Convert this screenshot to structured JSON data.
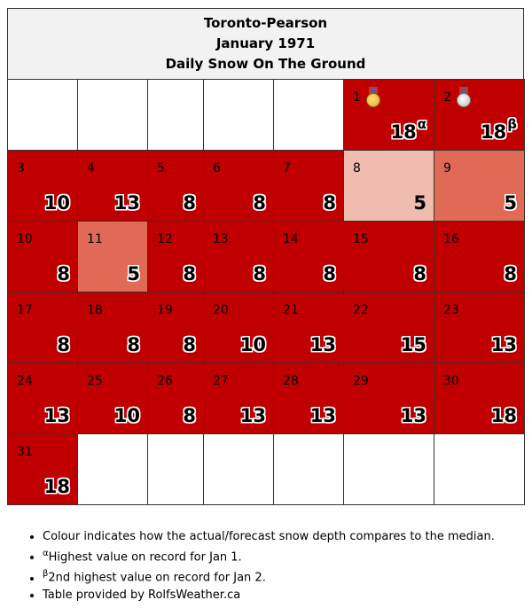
{
  "header": {
    "station": "Toronto-Pearson",
    "month": "January 1971",
    "metric": "Daily Snow On The Ground"
  },
  "colors": {
    "dark_red": "#c00000",
    "pale_pink": "#f0bcb0",
    "salmon": "#e06a55",
    "empty": "#ffffff"
  },
  "weeks": [
    [
      {
        "day": "",
        "value": "",
        "color": "empty"
      },
      {
        "day": "",
        "value": "",
        "color": "empty"
      },
      {
        "day": "",
        "value": "",
        "color": "empty"
      },
      {
        "day": "",
        "value": "",
        "color": "empty"
      },
      {
        "day": "",
        "value": "",
        "color": "empty"
      },
      {
        "day": "1",
        "value": "18",
        "sup": "α",
        "color": "dark_red",
        "medal": "gold-medal-icon"
      },
      {
        "day": "2",
        "value": "18",
        "sup": "β",
        "color": "dark_red",
        "medal": "silver-medal-icon"
      }
    ],
    [
      {
        "day": "3",
        "value": "10",
        "color": "dark_red"
      },
      {
        "day": "4",
        "value": "13",
        "color": "dark_red"
      },
      {
        "day": "5",
        "value": "8",
        "color": "dark_red"
      },
      {
        "day": "6",
        "value": "8",
        "color": "dark_red"
      },
      {
        "day": "7",
        "value": "8",
        "color": "dark_red"
      },
      {
        "day": "8",
        "value": "5",
        "color": "pale_pink"
      },
      {
        "day": "9",
        "value": "5",
        "color": "salmon"
      }
    ],
    [
      {
        "day": "10",
        "value": "8",
        "color": "dark_red"
      },
      {
        "day": "11",
        "value": "5",
        "color": "salmon"
      },
      {
        "day": "12",
        "value": "8",
        "color": "dark_red"
      },
      {
        "day": "13",
        "value": "8",
        "color": "dark_red"
      },
      {
        "day": "14",
        "value": "8",
        "color": "dark_red"
      },
      {
        "day": "15",
        "value": "8",
        "color": "dark_red"
      },
      {
        "day": "16",
        "value": "8",
        "color": "dark_red"
      }
    ],
    [
      {
        "day": "17",
        "value": "8",
        "color": "dark_red"
      },
      {
        "day": "18",
        "value": "8",
        "color": "dark_red"
      },
      {
        "day": "19",
        "value": "8",
        "color": "dark_red"
      },
      {
        "day": "20",
        "value": "10",
        "color": "dark_red"
      },
      {
        "day": "21",
        "value": "13",
        "color": "dark_red"
      },
      {
        "day": "22",
        "value": "15",
        "color": "dark_red"
      },
      {
        "day": "23",
        "value": "13",
        "color": "dark_red"
      }
    ],
    [
      {
        "day": "24",
        "value": "13",
        "color": "dark_red"
      },
      {
        "day": "25",
        "value": "10",
        "color": "dark_red"
      },
      {
        "day": "26",
        "value": "8",
        "color": "dark_red"
      },
      {
        "day": "27",
        "value": "13",
        "color": "dark_red"
      },
      {
        "day": "28",
        "value": "13",
        "color": "dark_red"
      },
      {
        "day": "29",
        "value": "13",
        "color": "dark_red"
      },
      {
        "day": "30",
        "value": "18",
        "color": "dark_red"
      }
    ],
    [
      {
        "day": "31",
        "value": "18",
        "color": "dark_red"
      },
      {
        "day": "",
        "value": "",
        "color": "empty"
      },
      {
        "day": "",
        "value": "",
        "color": "empty"
      },
      {
        "day": "",
        "value": "",
        "color": "empty"
      },
      {
        "day": "",
        "value": "",
        "color": "empty"
      },
      {
        "day": "",
        "value": "",
        "color": "empty"
      },
      {
        "day": "",
        "value": "",
        "color": "empty"
      }
    ]
  ],
  "notes": [
    {
      "sup": "",
      "text": "Colour indicates how the actual/forecast snow depth compares to the median."
    },
    {
      "sup": "α",
      "text": "Highest value on record for Jan 1."
    },
    {
      "sup": "β",
      "text": "2nd highest value on record for Jan 2."
    },
    {
      "sup": "",
      "text": "Table provided by RolfsWeather.ca"
    }
  ]
}
